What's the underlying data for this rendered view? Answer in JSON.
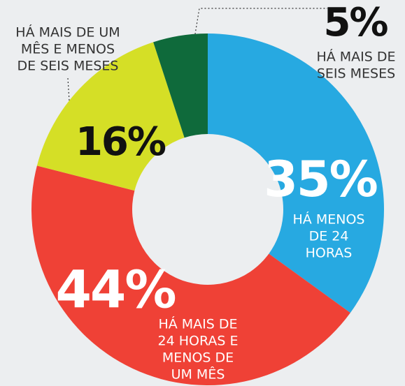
{
  "chart_data": {
    "type": "donut",
    "categories": [
      [
        "HÁ MENOS",
        "DE 24",
        "HORAS"
      ],
      [
        "HÁ MAIS DE",
        "24 HORAS E",
        "MENOS DE",
        "UM MÊS"
      ],
      [
        "HÁ MAIS DE UM",
        "MÊS E MENOS",
        "DE SEIS MESES"
      ],
      [
        "HÁ MAIS DE",
        "SEIS MESES"
      ]
    ],
    "values": [
      35,
      44,
      16,
      5
    ],
    "value_labels": [
      "35%",
      "44%",
      "16%",
      "5%"
    ],
    "colors": [
      "#27a9e1",
      "#ef4136",
      "#d5df26",
      "#0f6a3b"
    ]
  }
}
